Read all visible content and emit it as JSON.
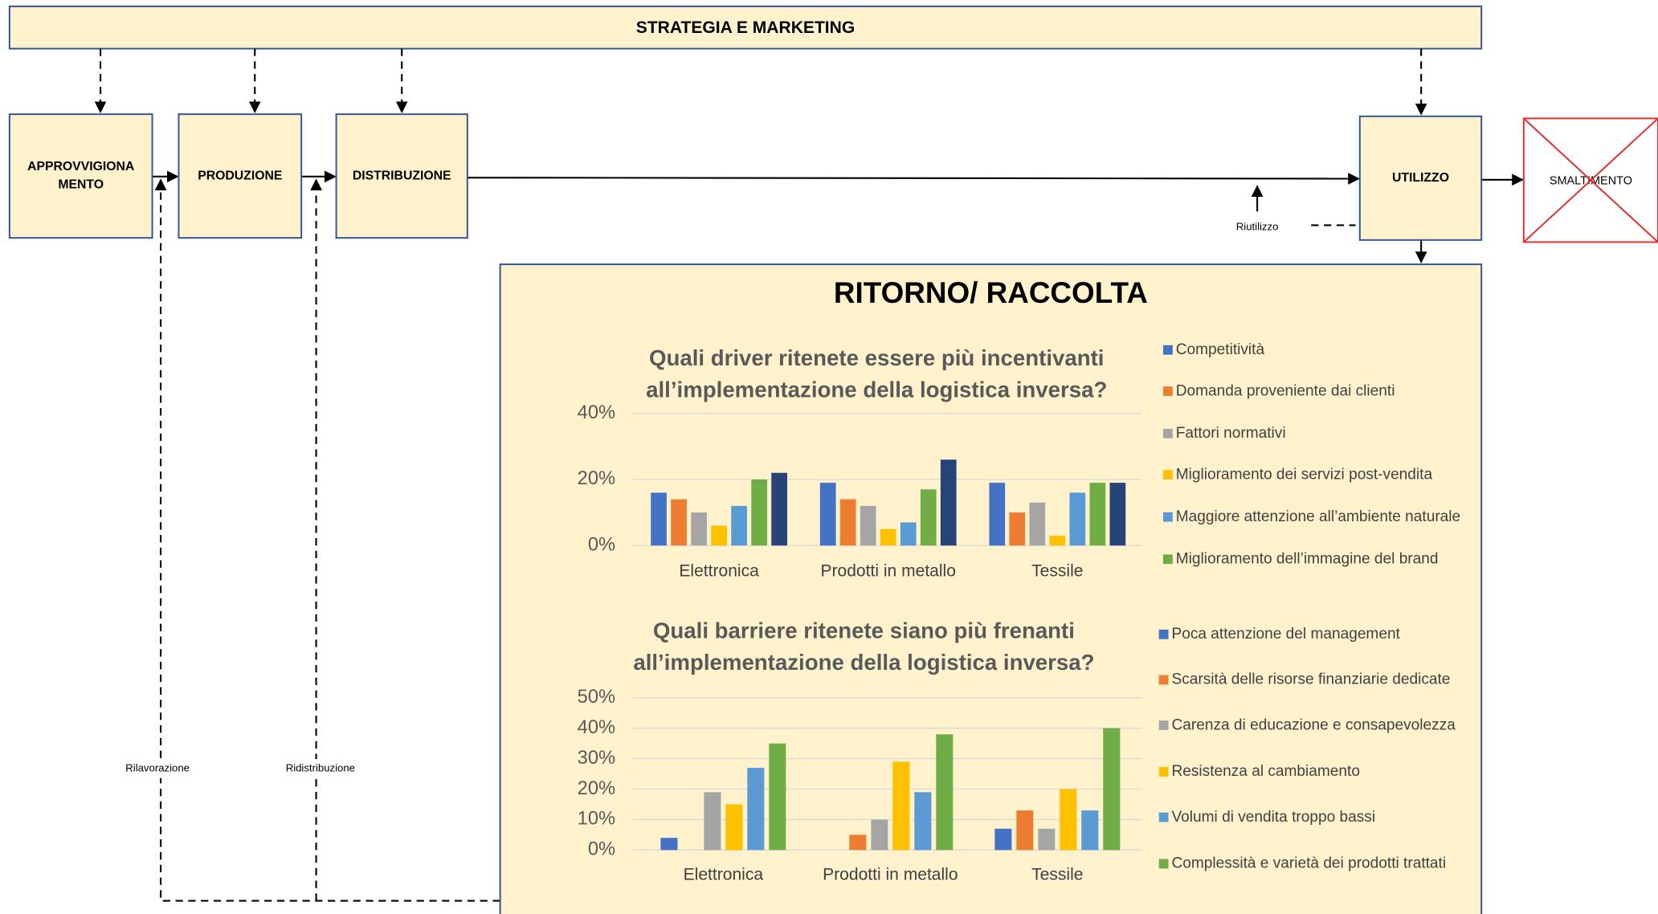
{
  "header": {
    "title": "STRATEGIA E MARKETING"
  },
  "nodes": [
    {
      "lines": [
        "APPROVVIGIONA",
        "MENTO"
      ]
    },
    {
      "lines": [
        "PRODUZIONE"
      ]
    },
    {
      "lines": [
        "DISTRIBUZIONE"
      ]
    },
    {
      "lines": [
        "UTILIZZO"
      ]
    },
    {
      "lines": [
        "SMALTIMENTO"
      ]
    }
  ],
  "edge_labels": {
    "reuse": "Riutilizzo",
    "rework": "Rilavorazione",
    "redistribution": "Ridistribuzione"
  },
  "panel": {
    "title": "RITORNO/ RACCOLTA"
  },
  "chart_data": [
    {
      "type": "bar",
      "title": [
        "Quali driver ritenete essere più incentivanti",
        "all’implementazione della logistica inversa?"
      ],
      "categories": [
        "Elettronica",
        "Prodotti in metallo",
        "Tessile"
      ],
      "series": [
        {
          "name": "Competitività",
          "color": "#4472c4",
          "values": [
            16,
            19,
            19
          ]
        },
        {
          "name": "Domanda proveniente dai clienti",
          "color": "#ed7d31",
          "values": [
            14,
            14,
            10
          ]
        },
        {
          "name": "Fattori normativi",
          "color": "#a5a5a5",
          "values": [
            10,
            12,
            13
          ]
        },
        {
          "name": "Miglioramento dei servizi post-vendita",
          "color": "#ffc000",
          "values": [
            6,
            5,
            3
          ]
        },
        {
          "name": "Maggiore attenzione all’ambiente naturale",
          "color": "#5b9bd5",
          "values": [
            12,
            7,
            16
          ]
        },
        {
          "name": "Miglioramento dell’immagine del brand",
          "color": "#70ad47",
          "values": [
            20,
            17,
            19
          ]
        },
        {
          "color": "#264478",
          "values": [
            22,
            26,
            19
          ]
        }
      ],
      "ylim": [
        0,
        40
      ],
      "yticks": [
        {
          "value": 0,
          "label": "0%"
        },
        {
          "value": 20,
          "label": "20%"
        },
        {
          "value": 40,
          "label": "40%"
        }
      ],
      "grid": true,
      "legend": "right"
    },
    {
      "type": "bar",
      "title": [
        "Quali barriere ritenete siano più frenanti",
        "all’implementazione della logistica inversa?"
      ],
      "categories": [
        "Elettronica",
        "Prodotti in metallo",
        "Tessile"
      ],
      "series": [
        {
          "name": "Poca attenzione del management",
          "color": "#4472c4",
          "values": [
            4,
            0,
            7
          ]
        },
        {
          "name": "Scarsità delle risorse finanziarie dedicate",
          "color": "#ed7d31",
          "values": [
            0,
            5,
            13
          ]
        },
        {
          "name": "Carenza di educazione e consapevolezza",
          "color": "#a5a5a5",
          "values": [
            19,
            10,
            7
          ]
        },
        {
          "name": "Resistenza al cambiamento",
          "color": "#ffc000",
          "values": [
            15,
            29,
            20
          ]
        },
        {
          "name": "Volumi di vendita troppo bassi",
          "color": "#5b9bd5",
          "values": [
            27,
            19,
            13
          ]
        },
        {
          "name": "Complessità e varietà dei prodotti trattati",
          "color": "#70ad47",
          "values": [
            35,
            38,
            40
          ]
        }
      ],
      "ylim": [
        0,
        50
      ],
      "yticks": [
        {
          "value": 0,
          "label": "0%"
        },
        {
          "value": 10,
          "label": "10%"
        },
        {
          "value": 20,
          "label": "20%"
        },
        {
          "value": 30,
          "label": "30%"
        },
        {
          "value": 40,
          "label": "40%"
        },
        {
          "value": 50,
          "label": "50%"
        }
      ],
      "grid": true,
      "legend": "right"
    }
  ]
}
